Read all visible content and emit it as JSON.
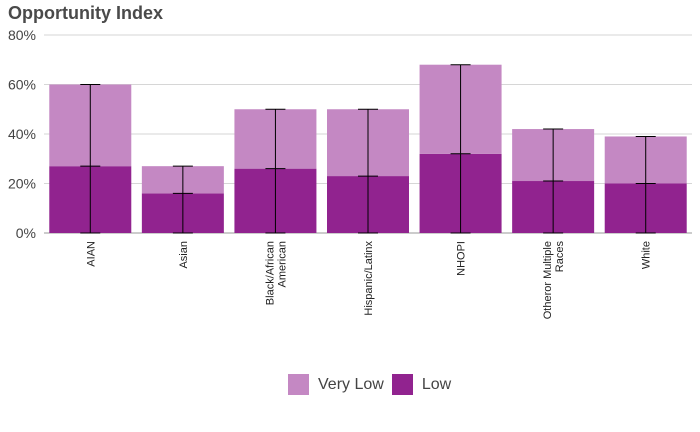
{
  "chart_data": {
    "type": "bar",
    "stacked": true,
    "title": "Opportunity Index",
    "categories": [
      "AIAN",
      "Asian",
      "Black/African American",
      "Hispanic/Latinx",
      "NHOPI",
      "Otheror Multiple Races",
      "White"
    ],
    "category_lines": [
      [
        "AIAN"
      ],
      [
        "Asian"
      ],
      [
        "Black/African",
        "American"
      ],
      [
        "Hispanic/Latinx"
      ],
      [
        "NHOPI"
      ],
      [
        "Otheror Multiple",
        "Races"
      ],
      [
        "White"
      ]
    ],
    "series": [
      {
        "name": "Low",
        "color": "#91238f",
        "values": [
          27,
          16,
          26,
          23,
          32,
          21,
          20
        ]
      },
      {
        "name": "Very Low",
        "color": "#c488c3",
        "values": [
          33,
          11,
          24,
          27,
          36,
          21,
          19
        ]
      }
    ],
    "totals": [
      60,
      27,
      50,
      50,
      68,
      42,
      39
    ],
    "ylim": [
      0,
      80
    ],
    "yticks": [
      "0%",
      "20%",
      "40%",
      "60%",
      "80%"
    ],
    "grid": true,
    "legend": {
      "position": "bottom",
      "order": [
        "Very Low",
        "Low"
      ]
    }
  }
}
